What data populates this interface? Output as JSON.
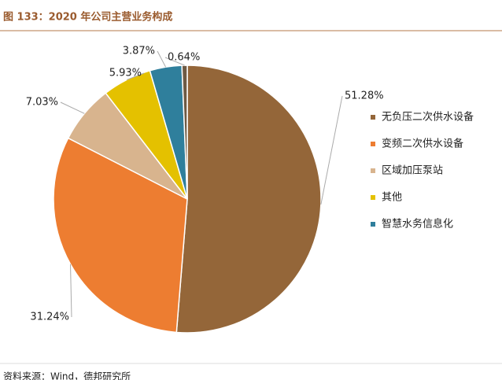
{
  "chart_data": {
    "type": "pie",
    "title": "图 133：2020 年公司主营业务构成",
    "source": "资料来源：Wind，德邦研究所",
    "categories": [
      "无负压二次供水设备",
      "变频二次供水设备",
      "区域加压泵站",
      "其他",
      "智慧水务信息化",
      null
    ],
    "values": [
      51.28,
      31.24,
      7.03,
      5.93,
      3.87,
      0.64
    ],
    "value_labels": [
      "51.28%",
      "31.24%",
      "7.03%",
      "5.93%",
      "3.87%",
      "0.64%"
    ],
    "colors": [
      "#946639",
      "#ED7D31",
      "#D8B48E",
      "#E4C100",
      "#2F7F9C",
      "#6E5A44"
    ],
    "legend": "right"
  }
}
